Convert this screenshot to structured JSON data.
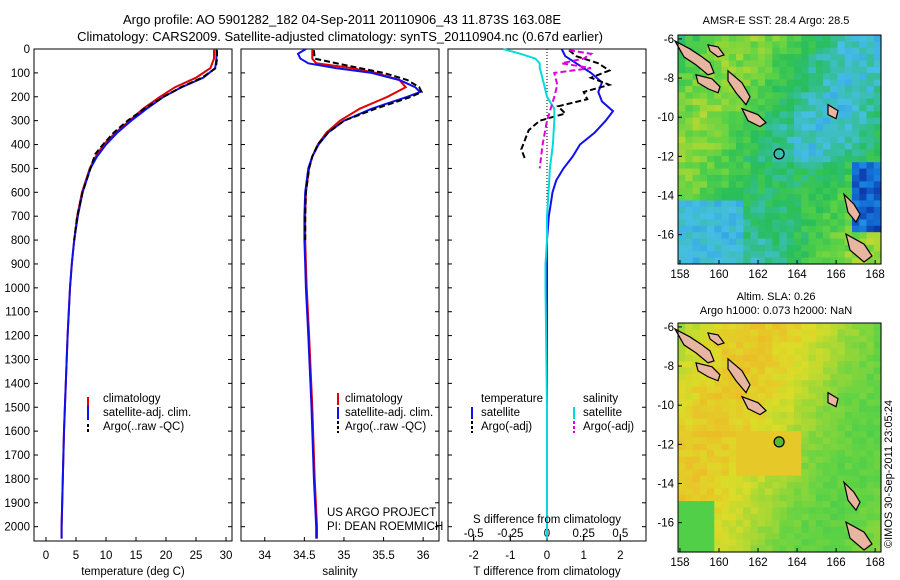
{
  "header": {
    "title1": "Argo profile: AO 5901282_182 04-Sep-2011 20110906_43 11.873S 163.08E",
    "title2": "Climatology: CARS2009. Satellite-adjusted climatology: synTS_20110904.nc (0.67d earlier)"
  },
  "colors": {
    "climatology": "#e00000",
    "satellite": "#1010ee",
    "argo": "#000000",
    "sat_diff": "#00dcdc",
    "argo_diff": "#dd00dd"
  },
  "credit": {
    "line1": "US ARGO PROJECT",
    "line2": "PI: DEAN ROEMMICH"
  },
  "stamp": "©IMOS 30-Sep-2011 23:05:24",
  "maps": [
    {
      "title": "AMSR-E SST: 28.4  Argo: 28.5",
      "xticks": [
        "158",
        "160",
        "162",
        "164",
        "166",
        "168"
      ],
      "yticks": [
        "-6",
        "-8",
        "-10",
        "-12",
        "-14",
        "-16"
      ],
      "ylim": [
        -17.5,
        -5.8
      ]
    },
    {
      "title1": "Altim. SLA: 0.26",
      "title2": "Argo h1000: 0.073 h2000: NaN",
      "xticks": [
        "158",
        "160",
        "162",
        "164",
        "166",
        "168"
      ],
      "yticks": [
        "-6",
        "-8",
        "-10",
        "-12",
        "-14",
        "-16"
      ],
      "ylim": [
        -17.5,
        -5.8
      ]
    }
  ],
  "chart_data": [
    {
      "type": "line",
      "xlabel": "temperature (deg C)",
      "ylabel": "",
      "xlim": [
        -2,
        31
      ],
      "ylim": [
        2060,
        0
      ],
      "xticks": [
        "0",
        "5",
        "10",
        "15",
        "20",
        "25",
        "30"
      ],
      "yticks": [
        "0",
        "100",
        "200",
        "300",
        "400",
        "500",
        "600",
        "700",
        "800",
        "900",
        "1000",
        "1100",
        "1200",
        "1300",
        "1400",
        "1500",
        "1600",
        "1700",
        "1800",
        "1900",
        "2000"
      ],
      "legend": [
        "climatology",
        "satellite-adj. clim.",
        "Argo(..raw -QC)"
      ],
      "legend_position": "bottom-center",
      "series": [
        {
          "name": "climatology",
          "depth": [
            0,
            40,
            80,
            120,
            160,
            200,
            250,
            300,
            350,
            400,
            450,
            500,
            600,
            700,
            800,
            900,
            1000,
            1200,
            1400,
            1600,
            1800,
            2000,
            2050
          ],
          "values": [
            28.0,
            28.0,
            27.4,
            25.0,
            21.5,
            19.0,
            16.2,
            13.9,
            11.6,
            9.6,
            8.3,
            7.3,
            6.0,
            5.2,
            4.7,
            4.3,
            4.0,
            3.6,
            3.3,
            3.0,
            2.8,
            2.6,
            2.6
          ]
        },
        {
          "name": "satellite-adj. clim.",
          "depth": [
            0,
            40,
            80,
            120,
            160,
            200,
            250,
            300,
            350,
            400,
            450,
            500,
            600,
            700,
            800,
            900,
            1000,
            1200,
            1400,
            1600,
            1800,
            2000,
            2050
          ],
          "values": [
            28.4,
            28.4,
            28.2,
            26.2,
            22.6,
            19.6,
            16.8,
            14.2,
            11.9,
            10.0,
            8.5,
            7.4,
            6.1,
            5.3,
            4.7,
            4.3,
            4.0,
            3.6,
            3.3,
            3.0,
            2.8,
            2.6,
            2.6
          ]
        },
        {
          "name": "Argo(..raw -QC)",
          "depth": [
            5,
            40,
            80,
            120,
            160,
            200,
            250,
            300,
            350,
            400,
            440,
            500,
            600,
            700,
            800
          ],
          "values": [
            28.5,
            28.5,
            28.3,
            26.0,
            22.5,
            19.6,
            16.4,
            13.6,
            11.3,
            9.5,
            8.2,
            7.4,
            6.1,
            5.2,
            4.7
          ]
        }
      ]
    },
    {
      "type": "line",
      "xlabel": "salinity",
      "ylabel": "",
      "xlim": [
        33.7,
        36.2
      ],
      "ylim": [
        2060,
        0
      ],
      "xticks": [
        "34",
        "34.5",
        "35",
        "35.5",
        "36"
      ],
      "legend": [
        "climatology",
        "satellite-adj. clim.",
        "Argo(..raw -QC)"
      ],
      "legend_position": "bottom-right",
      "series": [
        {
          "name": "climatology",
          "depth": [
            0,
            40,
            60,
            80,
            100,
            130,
            160,
            200,
            250,
            300,
            350,
            400,
            450,
            500,
            600,
            700,
            800,
            900,
            1000,
            1200,
            1500,
            1800,
            2000,
            2050
          ],
          "values": [
            34.6,
            34.6,
            34.65,
            35.1,
            35.4,
            35.7,
            35.78,
            35.55,
            35.2,
            34.95,
            34.78,
            34.67,
            34.6,
            34.56,
            34.52,
            34.51,
            34.51,
            34.52,
            34.53,
            34.56,
            34.6,
            34.63,
            34.66,
            34.66
          ]
        },
        {
          "name": "satellite-adj. clim.",
          "depth": [
            0,
            20,
            40,
            60,
            80,
            100,
            130,
            160,
            180,
            200,
            250,
            300,
            350,
            400,
            450,
            500,
            600,
            700,
            800,
            900,
            1000,
            1200,
            1500,
            1800,
            2000,
            2050
          ],
          "values": [
            34.52,
            34.42,
            34.45,
            34.55,
            34.9,
            35.35,
            35.7,
            35.9,
            35.96,
            35.8,
            35.35,
            35.0,
            34.8,
            34.68,
            34.6,
            34.55,
            34.51,
            34.5,
            34.5,
            34.51,
            34.52,
            34.55,
            34.59,
            34.62,
            34.65,
            34.65
          ]
        },
        {
          "name": "Argo(..raw -QC)",
          "depth": [
            5,
            40,
            70,
            100,
            130,
            160,
            180,
            200,
            250,
            300,
            350,
            400,
            450,
            500,
            600,
            700,
            800
          ],
          "values": [
            34.62,
            34.63,
            35.05,
            35.5,
            35.8,
            35.95,
            35.98,
            35.85,
            35.4,
            35.0,
            34.8,
            34.67,
            34.6,
            34.56,
            34.52,
            34.51,
            34.51
          ]
        }
      ]
    },
    {
      "type": "line",
      "xlabel": "T difference from climatology",
      "xlabel_top": "S difference from climatology",
      "xlim": [
        -2.7,
        2.7
      ],
      "ylim": [
        2060,
        0
      ],
      "xticks": [
        "-2",
        "-1",
        "0",
        "1",
        "2"
      ],
      "xticks_salinity": [
        "-0.5",
        "-0.25",
        "0",
        "0.25",
        "0.5"
      ],
      "legend_groups": [
        "temperature",
        "salinity"
      ],
      "legend": [
        "satellite",
        "Argo(-adj)",
        "satellite",
        "Argo(-adj)"
      ],
      "legend_position": "bottom",
      "series": [
        {
          "name": "satellite",
          "quantity": "temperature",
          "depth": [
            0,
            30,
            60,
            100,
            140,
            180,
            220,
            260,
            300,
            350,
            400,
            450,
            500,
            550,
            600,
            650,
            700,
            800,
            900,
            1000,
            1200,
            1500,
            2000,
            2050
          ],
          "values": [
            0.4,
            0.5,
            0.8,
            1.2,
            1.5,
            1.4,
            1.5,
            1.8,
            1.6,
            1.3,
            0.9,
            0.7,
            0.45,
            0.25,
            0.15,
            0.1,
            0.05,
            0.0,
            0.0,
            0.0,
            0.0,
            0.0,
            0.0,
            0.0
          ]
        },
        {
          "name": "Argo(-adj)",
          "quantity": "temperature",
          "depth": [
            5,
            30,
            60,
            90,
            120,
            150,
            180,
            210,
            240,
            270,
            300,
            340,
            380,
            420,
            460
          ],
          "values": [
            0.6,
            0.8,
            1.4,
            1.7,
            1.2,
            1.7,
            1.0,
            1.1,
            0.3,
            0.5,
            -0.2,
            -0.5,
            -0.6,
            -0.7,
            -0.6
          ]
        },
        {
          "name": "satellite",
          "quantity": "salinity",
          "depth": [
            0,
            20,
            40,
            60,
            80,
            100,
            150,
            200,
            250,
            300,
            400,
            500,
            600,
            700,
            800,
            900,
            1000,
            1500,
            2050
          ],
          "values": [
            -0.3,
            -0.18,
            -0.08,
            -0.05,
            -0.05,
            -0.04,
            -0.02,
            0.0,
            0.05,
            0.05,
            0.04,
            0.02,
            0.01,
            0.0,
            0.0,
            -0.01,
            -0.01,
            0.0,
            0.0
          ]
        },
        {
          "name": "Argo(-adj)",
          "quantity": "salinity",
          "depth": [
            5,
            20,
            40,
            60,
            80,
            100,
            150,
            200,
            300,
            400,
            500
          ],
          "values": [
            0.15,
            0.3,
            0.25,
            0.1,
            0.3,
            0.05,
            0.07,
            0.05,
            0.0,
            -0.03,
            -0.05
          ]
        }
      ]
    }
  ]
}
